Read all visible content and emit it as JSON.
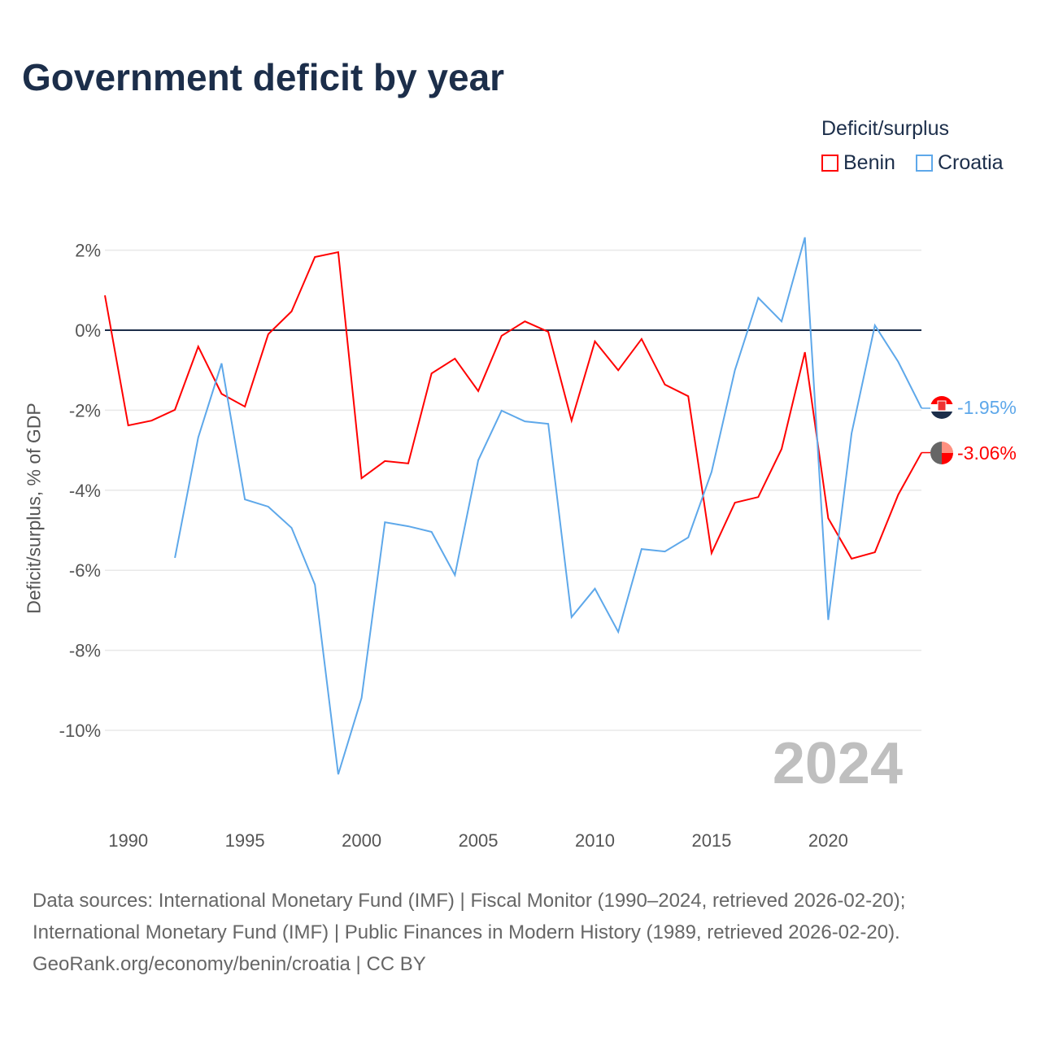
{
  "title": "Government deficit by year",
  "legend": {
    "title": "Deficit/surplus",
    "items": [
      {
        "name": "Benin",
        "color": "#ff0000"
      },
      {
        "name": "Croatia",
        "color": "#5ea8ea"
      }
    ]
  },
  "year_label": "2024",
  "end_labels": {
    "benin": "-3.06%",
    "croatia": "-1.95%"
  },
  "source": [
    "Data sources: International Monetary Fund (IMF) | Fiscal Monitor (1990–2024, retrieved 2026-02-20);",
    "International Monetary Fund (IMF) | Public Finances in Modern History (1989, retrieved 2026-02-20).",
    "GeoRank.org/economy/benin/croatia | CC BY"
  ],
  "chart_data": {
    "type": "line",
    "title": "Government deficit by year",
    "xlabel": "",
    "ylabel": "Deficit/surplus, % of GDP",
    "xlim": [
      1989,
      2024
    ],
    "ylim": [
      -12,
      2.5
    ],
    "yticks": [
      2,
      0,
      -2,
      -4,
      -6,
      -8,
      -10
    ],
    "ytick_labels": [
      "2%",
      "0%",
      "-2%",
      "-4%",
      "-6%",
      "-8%",
      "-10%"
    ],
    "xticks": [
      1990,
      1995,
      2000,
      2005,
      2010,
      2015,
      2020
    ],
    "xtick_labels": [
      "1990",
      "1995",
      "2000",
      "2005",
      "2010",
      "2015",
      "2020"
    ],
    "series": [
      {
        "name": "Benin",
        "color": "#ff0000",
        "x": [
          1989,
          1990,
          1991,
          1992,
          1993,
          1994,
          1995,
          1996,
          1997,
          1998,
          1999,
          2000,
          2001,
          2002,
          2003,
          2004,
          2005,
          2006,
          2007,
          2008,
          2009,
          2010,
          2011,
          2012,
          2013,
          2014,
          2015,
          2016,
          2017,
          2018,
          2019,
          2020,
          2021,
          2022,
          2023,
          2024
        ],
        "values": [
          0.87,
          -2.38,
          -2.26,
          -1.99,
          -0.41,
          -1.59,
          -1.91,
          -0.1,
          0.47,
          1.83,
          1.95,
          -3.7,
          -3.27,
          -3.33,
          -1.08,
          -0.71,
          -1.52,
          -0.14,
          0.22,
          -0.04,
          -2.26,
          -0.28,
          -1.0,
          -0.22,
          -1.36,
          -1.65,
          -5.57,
          -4.31,
          -4.17,
          -2.97,
          -0.55,
          -4.7,
          -5.71,
          -5.55,
          -4.11,
          -3.06
        ]
      },
      {
        "name": "Croatia",
        "color": "#5ea8ea",
        "x": [
          1992,
          1993,
          1994,
          1995,
          1996,
          1997,
          1998,
          1999,
          2000,
          2001,
          2002,
          2003,
          2004,
          2005,
          2006,
          2007,
          2008,
          2009,
          2010,
          2011,
          2012,
          2013,
          2014,
          2015,
          2016,
          2017,
          2018,
          2019,
          2020,
          2021,
          2022,
          2023,
          2024
        ],
        "values": [
          -5.69,
          -2.68,
          -0.83,
          -4.23,
          -4.41,
          -4.94,
          -6.36,
          -11.1,
          -9.19,
          -4.8,
          -4.9,
          -5.04,
          -6.12,
          -3.25,
          -2.01,
          -2.28,
          -2.34,
          -7.17,
          -6.46,
          -7.54,
          -5.47,
          -5.53,
          -5.18,
          -3.54,
          -1.0,
          0.81,
          0.22,
          2.32,
          -7.24,
          -2.58,
          0.12,
          -0.79,
          -1.95
        ]
      }
    ]
  }
}
